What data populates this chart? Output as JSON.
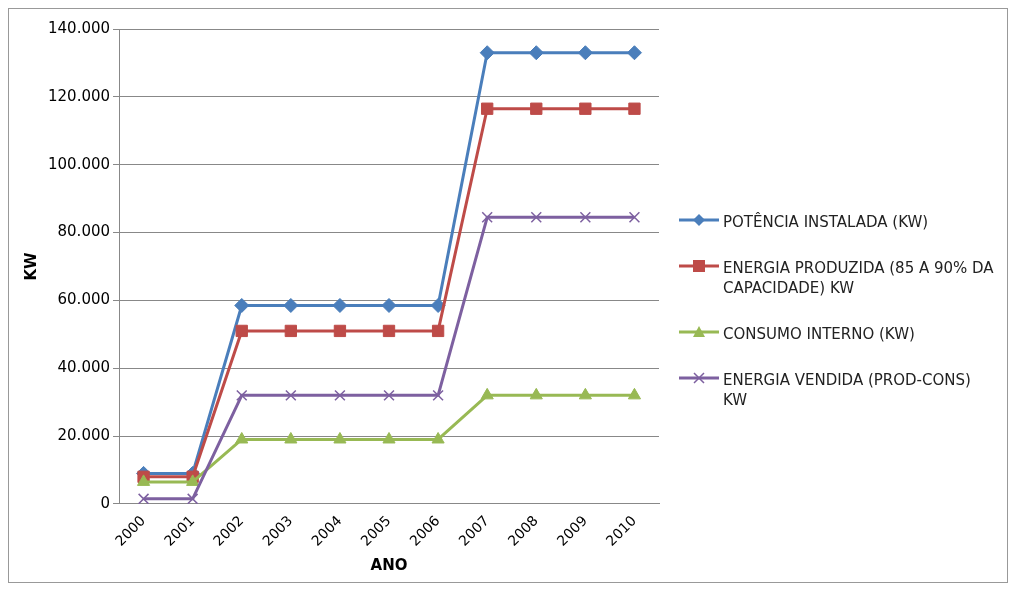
{
  "chart_data": {
    "type": "line",
    "xlabel": "ANO",
    "ylabel": "KW",
    "categories": [
      "2000",
      "2001",
      "2002",
      "2003",
      "2004",
      "2005",
      "2006",
      "2007",
      "2008",
      "2009",
      "2010"
    ],
    "series": [
      {
        "name": "POTÊNCIA INSTALADA  (KW)",
        "color": "#4a7ebb",
        "marker": "diamond",
        "values": [
          9000,
          9000,
          58500,
          58500,
          58500,
          58500,
          58500,
          133000,
          133000,
          133000,
          133000
        ]
      },
      {
        "name": "ENERGIA PRODUZIDA (85 A 90% DA CAPACIDADE) KW",
        "color": "#be4b48",
        "marker": "square",
        "values": [
          8000,
          8000,
          51000,
          51000,
          51000,
          51000,
          51000,
          116500,
          116500,
          116500,
          116500
        ]
      },
      {
        "name": "CONSUMO INTERNO (KW)",
        "color": "#98b954",
        "marker": "triangle",
        "values": [
          6500,
          6500,
          19000,
          19000,
          19000,
          19000,
          19000,
          32000,
          32000,
          32000,
          32000
        ]
      },
      {
        "name": "ENERGIA VENDIDA (PROD-CONS) KW",
        "color": "#7d60a0",
        "marker": "cross",
        "values": [
          1500,
          1500,
          32000,
          32000,
          32000,
          32000,
          32000,
          84500,
          84500,
          84500,
          84500
        ]
      }
    ],
    "ylim": [
      0,
      140000
    ],
    "yticks": [
      {
        "value": 0,
        "label": "0"
      },
      {
        "value": 20000,
        "label": "20.000"
      },
      {
        "value": 40000,
        "label": "40.000"
      },
      {
        "value": 60000,
        "label": "60.000"
      },
      {
        "value": 80000,
        "label": "80.000"
      },
      {
        "value": 100000,
        "label": "100.000"
      },
      {
        "value": 120000,
        "label": "120.000"
      },
      {
        "value": 140000,
        "label": "140.000"
      }
    ],
    "grid": "y",
    "legend": "right"
  }
}
